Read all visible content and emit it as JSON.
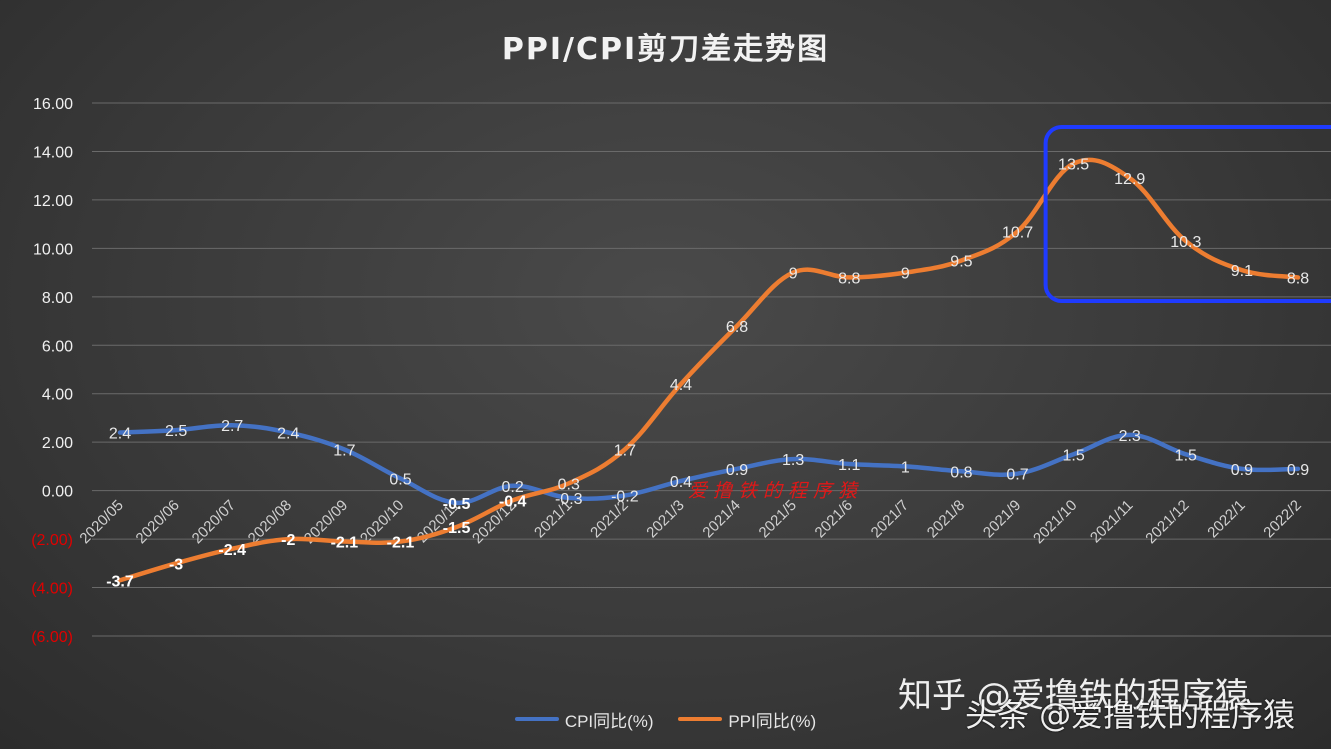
{
  "chart_data": {
    "type": "line",
    "title": "PPI/CPI剪刀差走势图",
    "categories": [
      "2020/05",
      "2020/06",
      "2020/07",
      "2020/08",
      "2020/09",
      "2020/10",
      "2020/11",
      "2020/12",
      "2021/1",
      "2021/2",
      "2021/3",
      "2021/4",
      "2021/5",
      "2021/6",
      "2021/7",
      "2021/8",
      "2021/9",
      "2021/10",
      "2021/11",
      "2021/12",
      "2022/1",
      "2022/2"
    ],
    "series": [
      {
        "name": "CPI同比(%)",
        "color": "#4472c4",
        "values": [
          2.4,
          2.5,
          2.7,
          2.4,
          1.7,
          0.5,
          -0.5,
          0.2,
          -0.3,
          -0.2,
          0.4,
          0.9,
          1.3,
          1.1,
          1,
          0.8,
          0.7,
          1.5,
          2.3,
          1.5,
          0.9,
          0.9
        ],
        "labels": [
          "2.4",
          "2.5",
          "2.7",
          "2.4",
          "1.7",
          "0.5",
          "-0.5",
          "0.2",
          "-0.3",
          "-0.2",
          "0.4",
          "0.9",
          "1.3",
          "1.1",
          "1",
          "0.8",
          "0.7",
          "1.5",
          "2.3",
          "1.5",
          "0.9",
          "0.9"
        ]
      },
      {
        "name": "PPI同比(%)",
        "color": "#ed7d31",
        "values": [
          -3.7,
          -3,
          -2.4,
          -2,
          -2.1,
          -2.1,
          -1.5,
          -0.4,
          0.3,
          1.7,
          4.4,
          6.8,
          9,
          8.8,
          9,
          9.5,
          10.7,
          13.5,
          12.9,
          10.3,
          9.1,
          8.8
        ],
        "labels": [
          "-3.7",
          "-3",
          "-2.4",
          "-2",
          "-2.1",
          "-2.1",
          "-1.5",
          "-0.4",
          "0.3",
          "1.7",
          "4.4",
          "6.8",
          "9",
          "8.8",
          "9",
          "9.5",
          "10.7",
          "13.5",
          "12.9",
          "10.3",
          "9.1",
          "8.8"
        ]
      }
    ],
    "y_ticks": [
      16,
      14,
      12,
      10,
      8,
      6,
      4,
      2,
      0,
      -2,
      -4,
      -6
    ],
    "y_tick_labels": [
      "16.00",
      "14.00",
      "12.00",
      "10.00",
      "8.00",
      "6.00",
      "4.00",
      "2.00",
      "0.00",
      "(2.00)",
      "(4.00)",
      "(6.00)"
    ],
    "ylim": [
      -6,
      16
    ],
    "grid": true,
    "legend_position": "bottom-center",
    "negative_tick_color": "#e00000",
    "highlight": {
      "x_from": "2021/10",
      "x_to": "2022/2",
      "color": "#1f3bff"
    }
  },
  "watermarks": {
    "zhihu": "知乎 @爱撸铁的程序猿",
    "toutiao": "头条 @爱撸铁的程序猿",
    "red_stamp": "爱撸铁的程序猿"
  }
}
